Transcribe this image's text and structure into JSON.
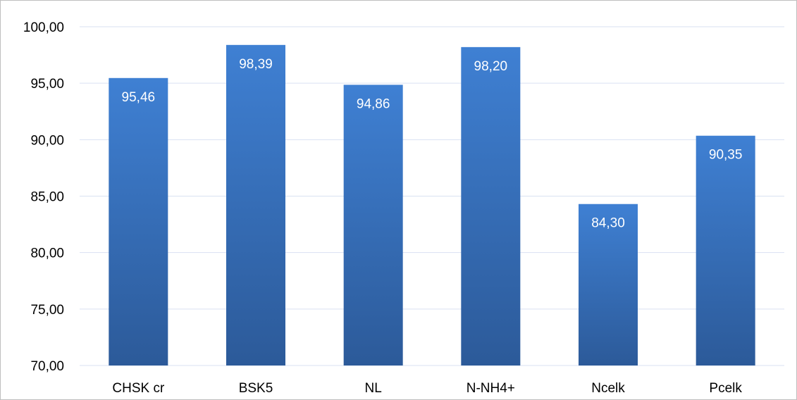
{
  "chart_data": {
    "type": "bar",
    "title": "",
    "xlabel": "",
    "ylabel": "",
    "categories": [
      "CHSK cr",
      "BSK5",
      "NL",
      "N-NH4+",
      "Ncelk",
      "Pcelk"
    ],
    "series": [
      {
        "values": [
          95.46,
          98.39,
          94.86,
          98.2,
          84.3,
          90.35
        ]
      }
    ],
    "data_labels": [
      "95,46",
      "98,39",
      "94,86",
      "98,20",
      "84,30",
      "90,35"
    ],
    "ylim": [
      70,
      100
    ],
    "yticks": [
      "70,00",
      "75,00",
      "80,00",
      "85,00",
      "90,00",
      "95,00",
      "100,00"
    ],
    "grid": true,
    "legend": "none",
    "colors": {
      "bar_top": "#3f80d3",
      "bar_bottom": "#2c5a99",
      "grid": "#d9e1f2",
      "label_outside": "#000000",
      "label_inside": "#ffffff"
    }
  }
}
